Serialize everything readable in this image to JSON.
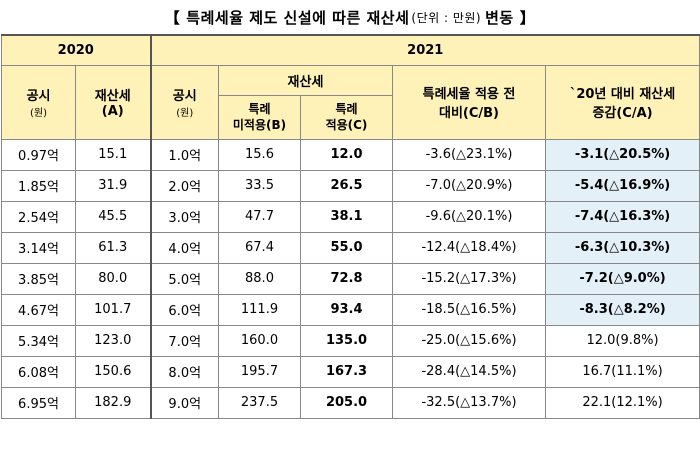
{
  "title": {
    "bracket_open": "【",
    "main": "특례세율 제도 신설에 따른 재산세",
    "unit": "(단위 : 만원)",
    "highlight": "변동",
    "bracket_close": "】"
  },
  "header": {
    "year_2020": "2020",
    "year_2021": "2021",
    "gongsi": "공시",
    "won": "(원)",
    "tax_a_line1": "재산세",
    "tax_a_line2": "(A)",
    "tax_group": "재산세",
    "b_line1": "특례",
    "b_line2": "미적용(B)",
    "c_line1": "특례",
    "c_line2": "적용(C)",
    "cb_line1": "특례세율 적용 전",
    "cb_line2": "대비(C/B)",
    "ca_line1": "`20년 대비 재산세",
    "ca_line2": "증감(C/A)"
  },
  "rows": [
    {
      "p2020": "0.97억",
      "a": "15.1",
      "p2021": "1.0억",
      "b": "15.6",
      "c": "12.0",
      "cb": "-3.6(△23.1%)",
      "ca": "-3.1(△20.5%)",
      "ca_hl": true
    },
    {
      "p2020": "1.85억",
      "a": "31.9",
      "p2021": "2.0억",
      "b": "33.5",
      "c": "26.5",
      "cb": "-7.0(△20.9%)",
      "ca": "-5.4(△16.9%)",
      "ca_hl": true
    },
    {
      "p2020": "2.54억",
      "a": "45.5",
      "p2021": "3.0억",
      "b": "47.7",
      "c": "38.1",
      "cb": "-9.6(△20.1%)",
      "ca": "-7.4(△16.3%)",
      "ca_hl": true
    },
    {
      "p2020": "3.14억",
      "a": "61.3",
      "p2021": "4.0억",
      "b": "67.4",
      "c": "55.0",
      "cb": "-12.4(△18.4%)",
      "ca": "-6.3(△10.3%)",
      "ca_hl": true
    },
    {
      "p2020": "3.85억",
      "a": "80.0",
      "p2021": "5.0억",
      "b": "88.0",
      "c": "72.8",
      "cb": "-15.2(△17.3%)",
      "ca": "-7.2(△9.0%)",
      "ca_hl": true
    },
    {
      "p2020": "4.67억",
      "a": "101.7",
      "p2021": "6.0억",
      "b": "111.9",
      "c": "93.4",
      "cb": "-18.5(△16.5%)",
      "ca": "-8.3(△8.2%)",
      "ca_hl": true
    },
    {
      "p2020": "5.34억",
      "a": "123.0",
      "p2021": "7.0억",
      "b": "160.0",
      "c": "135.0",
      "cb": "-25.0(△15.6%)",
      "ca": "12.0(9.8%)",
      "ca_hl": false
    },
    {
      "p2020": "6.08억",
      "a": "150.6",
      "p2021": "8.0억",
      "b": "195.7",
      "c": "167.3",
      "cb": "-28.4(△14.5%)",
      "ca": "16.7(11.1%)",
      "ca_hl": false
    },
    {
      "p2020": "6.95억",
      "a": "182.9",
      "p2021": "9.0억",
      "b": "237.5",
      "c": "205.0",
      "cb": "-32.5(△13.7%)",
      "ca": "22.1(12.1%)",
      "ca_hl": false
    }
  ]
}
